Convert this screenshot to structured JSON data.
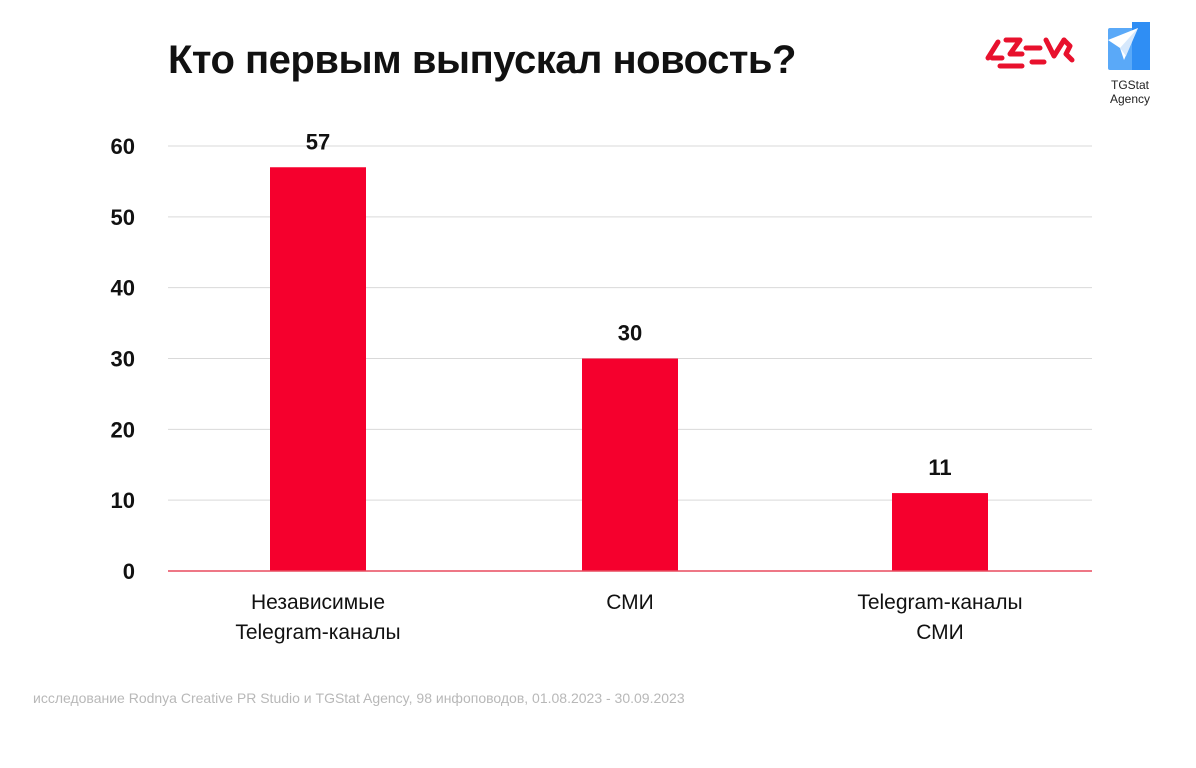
{
  "title": "Кто первым выпускал новость?",
  "logos": {
    "rodnya": {
      "icon": "rodnya-logo",
      "color": "#e8112d"
    },
    "tgstat": {
      "icon": "tgstat-logo",
      "line1": "TGStat",
      "line2": "Agency",
      "color": "#2f8ef4"
    }
  },
  "source_note": "исследование Rodnya Creative PR Studio и TGStat Agency, 98 инфоповодов, 01.08.2023 - 30.09.2023",
  "chart_data": {
    "type": "bar",
    "categories": [
      "Независимые Telegram-каналы",
      "СМИ",
      "Telegram-каналы СМИ"
    ],
    "category_lines": [
      [
        "Независимые",
        "Telegram-каналы"
      ],
      [
        "СМИ"
      ],
      [
        "Telegram-каналы",
        "СМИ"
      ]
    ],
    "values": [
      57,
      30,
      11
    ],
    "data_labels": [
      "57",
      "30",
      "11"
    ],
    "ylim": [
      0,
      60
    ],
    "yticks": [
      0,
      10,
      20,
      30,
      40,
      50,
      60
    ],
    "grid": true,
    "bar_color": "#f5002d",
    "title": "Кто первым выпускал новость?",
    "xlabel": "",
    "ylabel": ""
  }
}
